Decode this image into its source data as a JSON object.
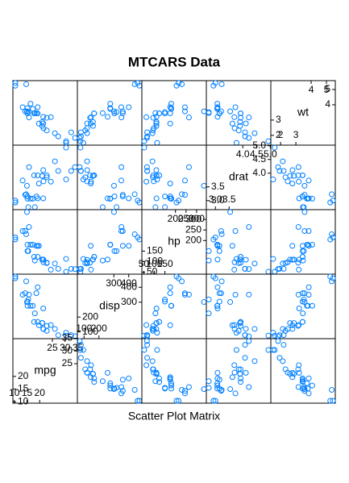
{
  "chart_data": {
    "type": "splom",
    "title": "MTCARS Data",
    "xlabel": "Scatter Plot Matrix",
    "color": "#0080ff",
    "variables": [
      {
        "name": "mpg",
        "lim": [
          9.46,
          34.84
        ],
        "ticks": [
          10,
          15,
          20,
          25,
          30,
          35
        ],
        "values": [
          21,
          21,
          22.8,
          21.4,
          18.7,
          18.1,
          14.3,
          24.4,
          22.8,
          19.2,
          17.8,
          16.4,
          17.3,
          15.2,
          10.4,
          10.4,
          14.7,
          32.4,
          30.4,
          33.9,
          21.5,
          15.5,
          15.2,
          13.3,
          19.2,
          27.3,
          26,
          30.4,
          15.8,
          19.7,
          15,
          21.4
        ]
      },
      {
        "name": "disp",
        "lim": [
          55.1,
          488
        ],
        "ticks": [
          100,
          200,
          300,
          400
        ],
        "values": [
          160,
          160,
          108,
          258,
          360,
          225,
          360,
          146.7,
          140.8,
          167.6,
          167.6,
          275.8,
          275.8,
          275.8,
          472,
          460,
          440,
          78.7,
          75.7,
          71.1,
          120.1,
          318,
          304,
          350,
          400,
          79,
          120.3,
          95.1,
          351,
          145,
          301,
          121
        ]
      },
      {
        "name": "hp",
        "lim": [
          40.7,
          346.3
        ],
        "ticks": [
          50,
          100,
          150,
          200,
          250,
          300
        ],
        "values": [
          110,
          110,
          93,
          110,
          175,
          105,
          245,
          62,
          95,
          123,
          123,
          180,
          180,
          180,
          205,
          215,
          230,
          66,
          52,
          65,
          97,
          150,
          150,
          245,
          175,
          66,
          91,
          113,
          264,
          175,
          335,
          109
        ]
      },
      {
        "name": "drat",
        "lim": [
          2.67,
          5.02
        ],
        "ticks": [
          {
            "value": 3,
            "label": "3.0"
          },
          3.5,
          {
            "value": 4,
            "label": "4.0"
          },
          4.5,
          {
            "value": 5,
            "label": "5.0"
          }
        ],
        "values": [
          3.9,
          3.9,
          3.85,
          3.08,
          3.15,
          2.76,
          3.21,
          3.69,
          3.92,
          3.92,
          3.92,
          3.07,
          3.07,
          3.07,
          2.93,
          3,
          3.23,
          4.08,
          4.93,
          4.22,
          3.7,
          2.76,
          3.15,
          3.73,
          3.08,
          4.08,
          4.43,
          3.77,
          4.22,
          3.62,
          3.54,
          4.11
        ]
      },
      {
        "name": "wt",
        "lim": [
          1.36,
          5.58
        ],
        "ticks": [
          2,
          3,
          4,
          5
        ],
        "values": [
          2.62,
          2.875,
          2.32,
          3.215,
          3.44,
          3.46,
          3.57,
          3.19,
          3.15,
          3.44,
          3.44,
          4.07,
          3.73,
          3.78,
          5.25,
          5.424,
          5.345,
          2.2,
          1.615,
          1.835,
          2.465,
          3.52,
          3.435,
          3.84,
          3.845,
          1.935,
          2.14,
          1.513,
          3.17,
          2.77,
          3.57,
          2.78
        ]
      }
    ]
  }
}
